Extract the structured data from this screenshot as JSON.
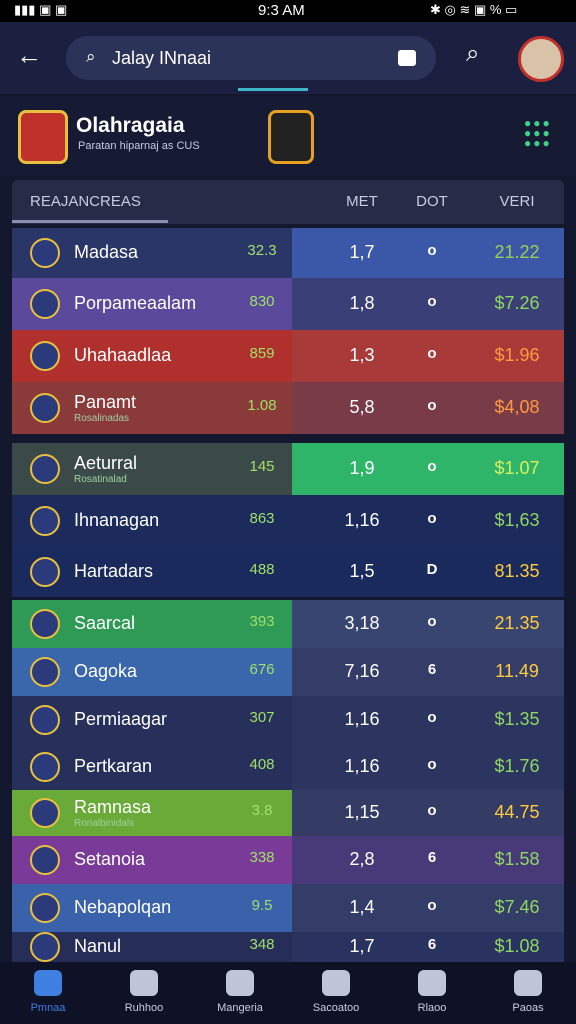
{
  "status_bar": {
    "time": "9:3 AM"
  },
  "top_bar": {
    "search": "Jalay INnaai"
  },
  "header": {
    "title": "Olahragaia",
    "subtitle": "Paratan hiparnaj as CUS"
  },
  "table": {
    "columns": [
      "REAJANCREAS",
      "MET",
      "DOT",
      "VERI"
    ],
    "rows": [
      {
        "name": "Madasa",
        "cells": [
          "32.3",
          "1,7",
          "o",
          "21.22"
        ]
      },
      {
        "name": "Porpameaalam",
        "cells": [
          "830",
          "1,8",
          "o",
          "$7.26"
        ]
      },
      {
        "name": "Uhahaadlaa",
        "cells": [
          "859",
          "1,3",
          "o",
          "$1.96"
        ]
      },
      {
        "name": "Panamt",
        "sub": "Rosalinadas",
        "cells": [
          "1.08",
          "5,8",
          "o",
          "$4,08"
        ]
      },
      {
        "name": "Aeturral",
        "sub": "Rosatinalad",
        "cells": [
          "145",
          "1,9",
          "o",
          "$1.07"
        ]
      },
      {
        "name": "Ihnanagan",
        "cells": [
          "863",
          "1,16",
          "o",
          "$1,63"
        ]
      },
      {
        "name": "Hartadars",
        "cells": [
          "488",
          "1,5",
          "D",
          "81.35"
        ]
      },
      {
        "name": "Saarcal",
        "cells": [
          "393",
          "3,18",
          "o",
          "21.35"
        ]
      },
      {
        "name": "Oagoka",
        "cells": [
          "676",
          "7,16",
          "6",
          "11.49"
        ]
      },
      {
        "name": "Permiaagar",
        "cells": [
          "307",
          "1,16",
          "o",
          "$1.35"
        ]
      },
      {
        "name": "Pertkaran",
        "cells": [
          "408",
          "1,16",
          "o",
          "$1.76"
        ]
      },
      {
        "name": "Ramnasa",
        "sub": "Ronalbinidals",
        "cells": [
          "3.8",
          "1,15",
          "o",
          "44.75"
        ]
      },
      {
        "name": "Setanoia",
        "cells": [
          "338",
          "2,8",
          "6",
          "$1.58"
        ]
      },
      {
        "name": "Nebapolqan",
        "cells": [
          "9.5",
          "1,4",
          "o",
          "$7.46"
        ]
      },
      {
        "name": "Nanul",
        "cells": [
          "348",
          "1,7",
          "6",
          "$1.08"
        ]
      }
    ]
  },
  "bottom_nav": [
    "Pmnaa",
    "Ruhhoo",
    "Mangeria",
    "Sacoatoo",
    "Rlaoo",
    "Paoas"
  ]
}
